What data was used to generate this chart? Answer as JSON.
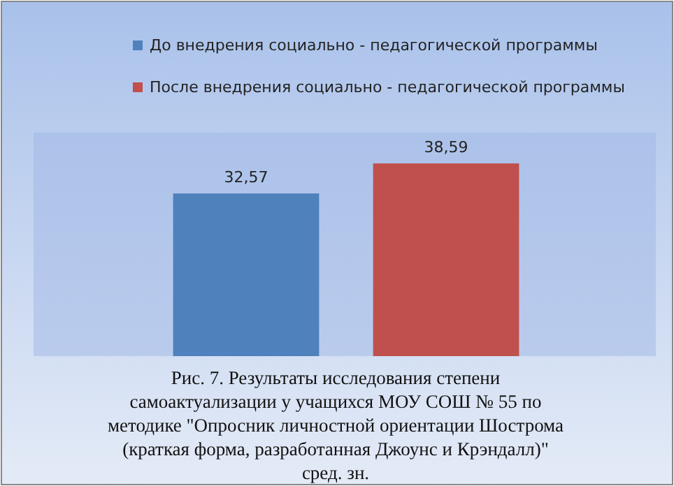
{
  "chart_data": {
    "type": "bar",
    "categories": [
      null
    ],
    "series": [
      {
        "name": "До внедрения социально - педагогической программы",
        "color": "#4f81bd",
        "values": [
          32.57
        ],
        "value_labels": [
          "32,57"
        ]
      },
      {
        "name": "После внедрения социально - педагогической программы",
        "color": "#c0504d",
        "values": [
          38.59
        ],
        "value_labels": [
          "38,59"
        ]
      }
    ],
    "legend": "top",
    "annotations": [
      "Рис. 7. Результаты исследования  степени самоактуализации у учащихся МОУ СОШ №  55 по методике \"Опросник личностной ориентации Шострома (краткая форма, разработанная Джоунс и Крэндалл)\" сред. зн."
    ]
  }
}
